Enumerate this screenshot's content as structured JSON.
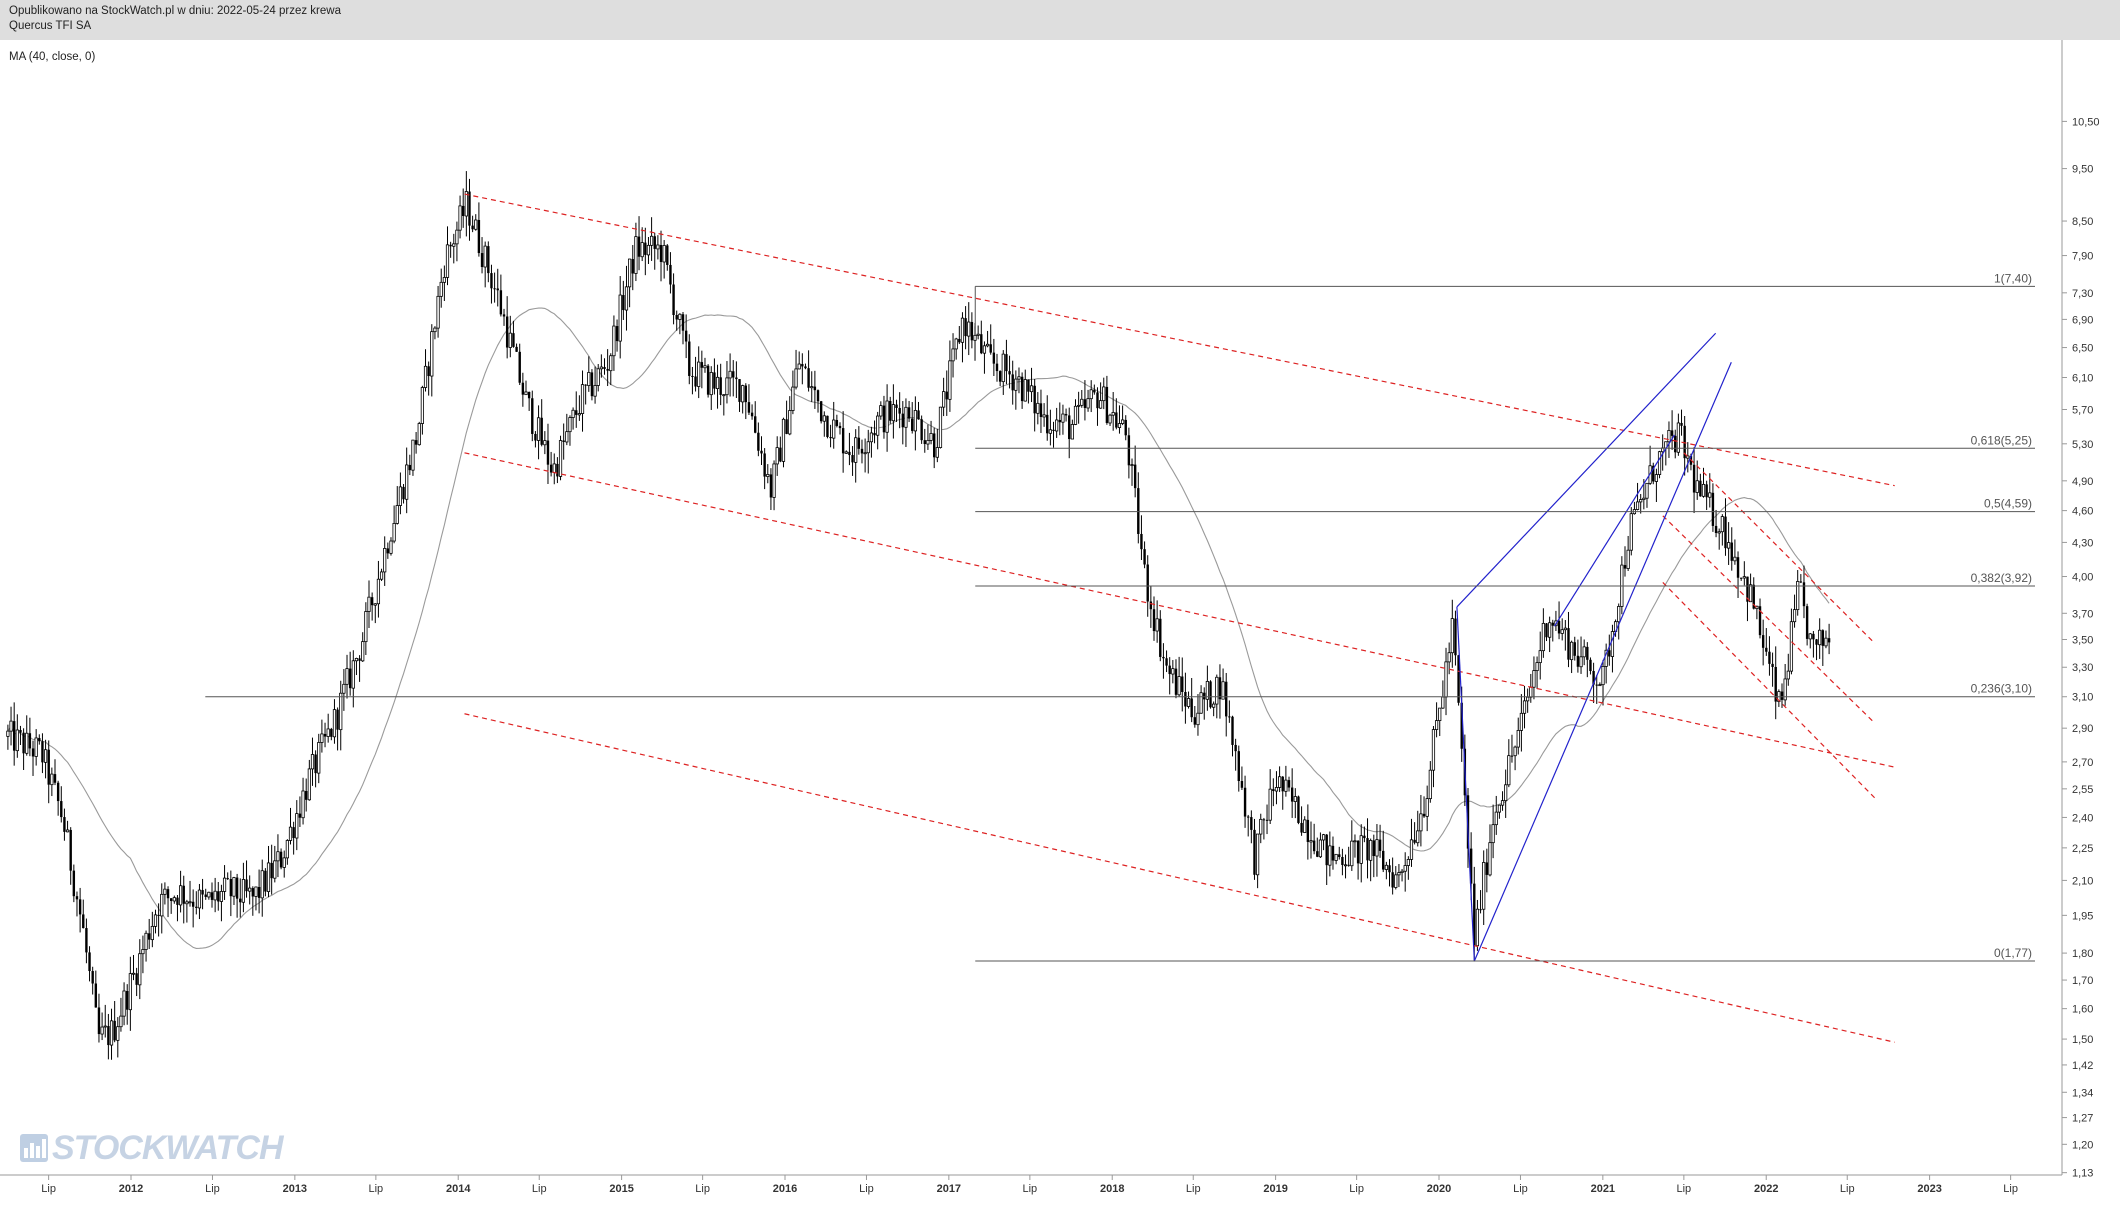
{
  "header": {
    "published": "Opublikowano na StockWatch.pl w dniu: 2022-05-24 przez krewa",
    "instrument": "Quercus TFI SA"
  },
  "indicator_label": "MA (40, close, 0)",
  "logo_text": "STOCKWATCH",
  "colors": {
    "candle": "#000000",
    "ma": "#9a9a9a",
    "trend_red": "#dd2222",
    "trend_blue": "#2222cc",
    "fib": "#555555",
    "header_bg": "#dedede"
  },
  "chart_data": {
    "type": "candlestick",
    "scale": "log",
    "y_ticks": [
      "10,50",
      "9,50",
      "8,50",
      "7,90",
      "7,30",
      "6,90",
      "6,50",
      "6,10",
      "5,70",
      "5,30",
      "4,90",
      "4,60",
      "4,30",
      "4,00",
      "3,70",
      "3,50",
      "3,30",
      "3,10",
      "2,90",
      "2,70",
      "2,55",
      "2,40",
      "2,25",
      "2,10",
      "1,95",
      "1,80",
      "1,70",
      "1,60",
      "1,50",
      "1,42",
      "1,34",
      "1,27",
      "1,20",
      "1,13"
    ],
    "x_ticks": [
      "Lip",
      "2012",
      "Lip",
      "2013",
      "Lip",
      "2014",
      "Lip",
      "2015",
      "Lip",
      "2016",
      "Lip",
      "2017",
      "Lip",
      "2018",
      "Lip",
      "2019",
      "Lip",
      "2020",
      "Lip",
      "2021",
      "Lip",
      "2022",
      "Lip",
      "2023",
      "Lip"
    ],
    "ylim": [
      1.13,
      10.5
    ],
    "fib_levels": [
      {
        "label": "1(7,40)",
        "value": 7.4
      },
      {
        "label": "0,618(5,25)",
        "value": 5.25
      },
      {
        "label": "0,5(4,59)",
        "value": 4.59
      },
      {
        "label": "0,382(3,92)",
        "value": 3.92
      },
      {
        "label": "0,236(3,10)",
        "value": 3.1
      },
      {
        "label": "0(1,77)",
        "value": 1.77
      }
    ],
    "price_path": [
      [
        "2011-04-01",
        2.85
      ],
      [
        "2011-06-15",
        2.75
      ],
      [
        "2011-08-01",
        2.4
      ],
      [
        "2011-09-15",
        1.9
      ],
      [
        "2011-10-20",
        1.5
      ],
      [
        "2011-11-20",
        1.52
      ],
      [
        "2012-01-15",
        1.75
      ],
      [
        "2012-03-01",
        2.0
      ],
      [
        "2012-04-15",
        2.05
      ],
      [
        "2012-06-15",
        2.0
      ],
      [
        "2012-08-01",
        2.05
      ],
      [
        "2012-10-01",
        2.02
      ],
      [
        "2012-12-01",
        2.2
      ],
      [
        "2013-02-01",
        2.6
      ],
      [
        "2013-04-01",
        2.95
      ],
      [
        "2013-06-01",
        3.5
      ],
      [
        "2013-08-01",
        4.4
      ],
      [
        "2013-10-01",
        5.4
      ],
      [
        "2013-12-01",
        7.8
      ],
      [
        "2014-01-20",
        8.8
      ],
      [
        "2014-04-01",
        7.2
      ],
      [
        "2014-06-01",
        5.8
      ],
      [
        "2014-08-01",
        5.0
      ],
      [
        "2014-10-01",
        5.8
      ],
      [
        "2014-12-01",
        6.3
      ],
      [
        "2015-02-01",
        8.0
      ],
      [
        "2015-04-01",
        8.0
      ],
      [
        "2015-06-01",
        6.2
      ],
      [
        "2015-08-01",
        6.0
      ],
      [
        "2015-10-01",
        6.0
      ],
      [
        "2015-12-01",
        4.8
      ],
      [
        "2016-02-01",
        6.3
      ],
      [
        "2016-04-01",
        5.6
      ],
      [
        "2016-06-01",
        5.2
      ],
      [
        "2016-08-01",
        5.6
      ],
      [
        "2016-10-01",
        5.7
      ],
      [
        "2016-12-01",
        5.3
      ],
      [
        "2017-02-01",
        6.9
      ],
      [
        "2017-04-01",
        6.3
      ],
      [
        "2017-06-01",
        6.1
      ],
      [
        "2017-08-01",
        5.6
      ],
      [
        "2017-10-01",
        5.5
      ],
      [
        "2017-12-01",
        5.9
      ],
      [
        "2018-02-01",
        5.4
      ],
      [
        "2018-03-15",
        4.0
      ],
      [
        "2018-05-01",
        3.3
      ],
      [
        "2018-07-01",
        3.0
      ],
      [
        "2018-09-01",
        3.2
      ],
      [
        "2018-10-15",
        2.6
      ],
      [
        "2018-11-15",
        2.2
      ],
      [
        "2019-01-01",
        2.6
      ],
      [
        "2019-03-01",
        2.4
      ],
      [
        "2019-05-01",
        2.2
      ],
      [
        "2019-08-01",
        2.25
      ],
      [
        "2019-10-01",
        2.1
      ],
      [
        "2019-12-01",
        2.5
      ],
      [
        "2020-02-01",
        3.6
      ],
      [
        "2020-03-20",
        1.85
      ],
      [
        "2020-05-01",
        2.4
      ],
      [
        "2020-07-01",
        2.9
      ],
      [
        "2020-09-01",
        3.7
      ],
      [
        "2020-11-01",
        3.4
      ],
      [
        "2021-01-01",
        3.2
      ],
      [
        "2021-03-01",
        4.4
      ],
      [
        "2021-05-01",
        5.1
      ],
      [
        "2021-06-20",
        5.4
      ],
      [
        "2021-08-01",
        4.8
      ],
      [
        "2021-10-01",
        4.4
      ],
      [
        "2021-12-01",
        3.8
      ],
      [
        "2022-02-01",
        3.0
      ],
      [
        "2022-03-15",
        3.9
      ],
      [
        "2022-04-15",
        3.4
      ],
      [
        "2022-05-24",
        3.55
      ]
    ]
  }
}
